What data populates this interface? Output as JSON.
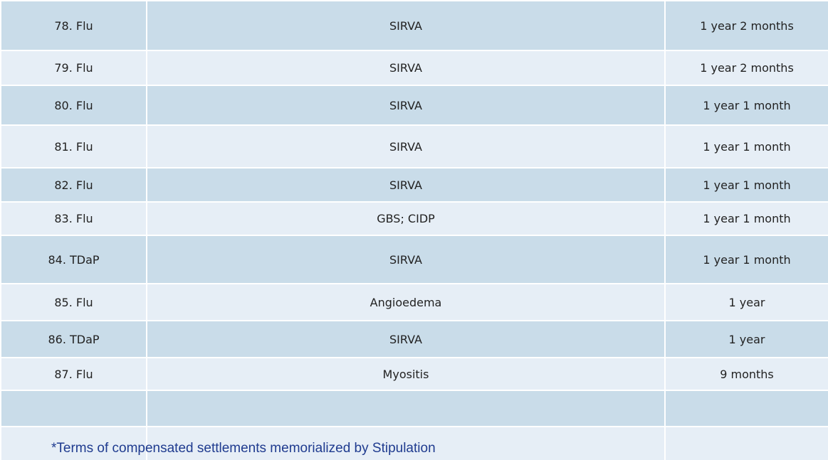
{
  "table": {
    "rows": [
      {
        "vaccine": "78. Flu",
        "injury": "SIRVA",
        "time": "1 year 2 months"
      },
      {
        "vaccine": "79. Flu",
        "injury": "SIRVA",
        "time": "1 year 2 months"
      },
      {
        "vaccine": "80. Flu",
        "injury": "SIRVA",
        "time": "1 year 1 month"
      },
      {
        "vaccine": "81. Flu",
        "injury": "SIRVA",
        "time": "1 year 1 month"
      },
      {
        "vaccine": "82. Flu",
        "injury": "SIRVA",
        "time": "1 year 1 month"
      },
      {
        "vaccine": "83. Flu",
        "injury": "GBS; CIDP",
        "time": "1 year 1 month"
      },
      {
        "vaccine": "84. TDaP",
        "injury": "SIRVA",
        "time": "1 year 1 month"
      },
      {
        "vaccine": "85. Flu",
        "injury": "Angioedema",
        "time": "1 year"
      },
      {
        "vaccine": "86. TDaP",
        "injury": "SIRVA",
        "time": "1 year"
      },
      {
        "vaccine": "87. Flu",
        "injury": "Myositis",
        "time": "9 months"
      }
    ]
  },
  "footnote": "*Terms of compensated settlements memorialized by Stipulation",
  "colors": {
    "row_dark": "#c9dce9",
    "row_light": "#e6eef6",
    "footnote": "#1f3b8f"
  }
}
